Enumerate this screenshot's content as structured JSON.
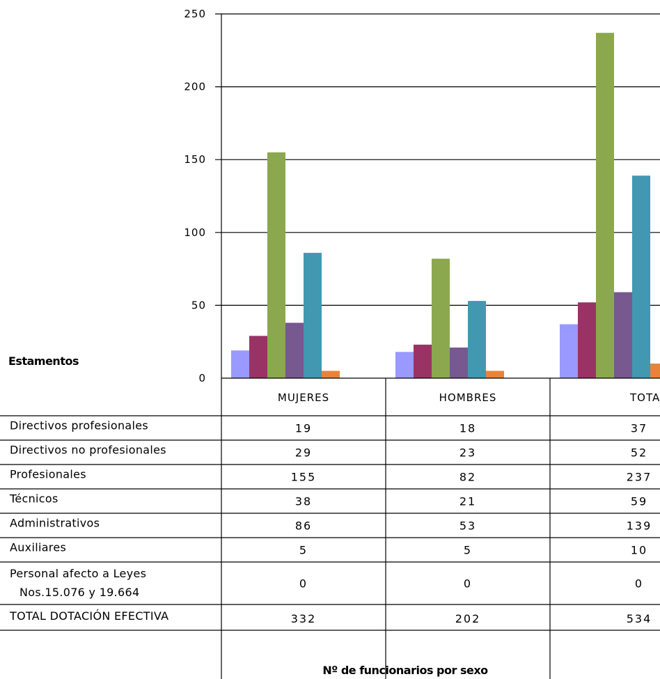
{
  "chart_data": {
    "type": "bar",
    "title": "Nº de funcionarios por sexo",
    "table_header": "Estamentos",
    "categories": [
      "MUJERES",
      "HOMBRES",
      "TOTAL"
    ],
    "ylim": [
      0,
      250
    ],
    "yticks": [
      "0",
      "50",
      "100",
      "150",
      "200",
      "250"
    ],
    "grid": true,
    "series": [
      {
        "name": "Directivos profesionales",
        "color": "#9999FF",
        "values": [
          19,
          18,
          37
        ]
      },
      {
        "name": "Directivos no profesionales",
        "color": "#993366",
        "values": [
          29,
          23,
          52
        ]
      },
      {
        "name": "Profesionales",
        "color": "#8BA84E",
        "values": [
          155,
          82,
          237
        ]
      },
      {
        "name": "Técnicos",
        "color": "#77588F",
        "values": [
          38,
          21,
          59
        ]
      },
      {
        "name": "Administrativos",
        "color": "#4298B0",
        "values": [
          86,
          53,
          139
        ]
      },
      {
        "name": "Auxiliares",
        "color": "#E8843A",
        "values": [
          5,
          5,
          10
        ]
      }
    ],
    "extra_rows": [
      {
        "label_line1": "Personal afecto a Leyes",
        "label_line2": "Nos.15.076 y 19.664",
        "values": [
          "0",
          "0",
          "0"
        ]
      },
      {
        "label_line1": "TOTAL DOTACIÓN EFECTIVA",
        "label_line2": "",
        "values": [
          "332",
          "202",
          "534"
        ]
      }
    ]
  }
}
